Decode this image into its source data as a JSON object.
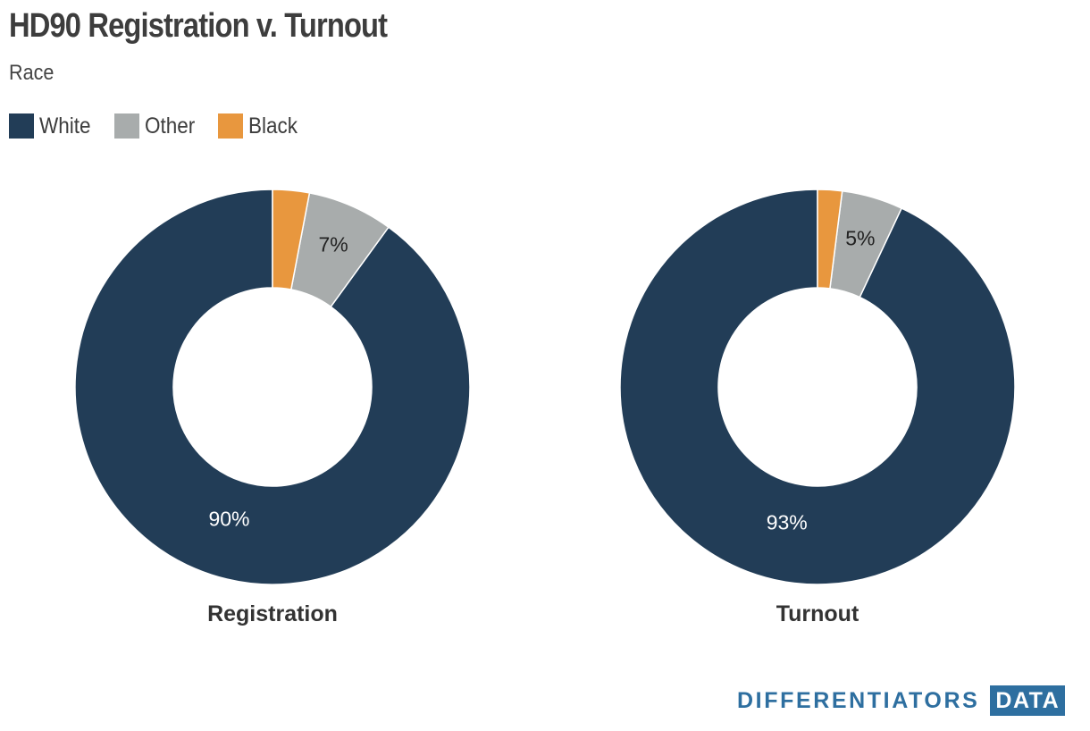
{
  "title": "HD90 Registration v. Turnout",
  "subtitle": "Race",
  "legend": [
    {
      "label": "White",
      "color": "#223d57"
    },
    {
      "label": "Other",
      "color": "#a8acac"
    },
    {
      "label": "Black",
      "color": "#e8973e"
    }
  ],
  "chart_data": [
    {
      "type": "pie",
      "variant": "donut",
      "title": "Registration",
      "categories": [
        "White",
        "Other",
        "Black"
      ],
      "values": [
        90,
        7,
        3
      ],
      "data_labels": [
        "90%",
        "7%",
        ""
      ]
    },
    {
      "type": "pie",
      "variant": "donut",
      "title": "Turnout",
      "categories": [
        "White",
        "Other",
        "Black"
      ],
      "values": [
        93,
        5,
        2
      ],
      "data_labels": [
        "93%",
        "5%",
        ""
      ]
    }
  ],
  "brand": {
    "word": "DIFFERENTIATORS",
    "box": "DATA"
  }
}
